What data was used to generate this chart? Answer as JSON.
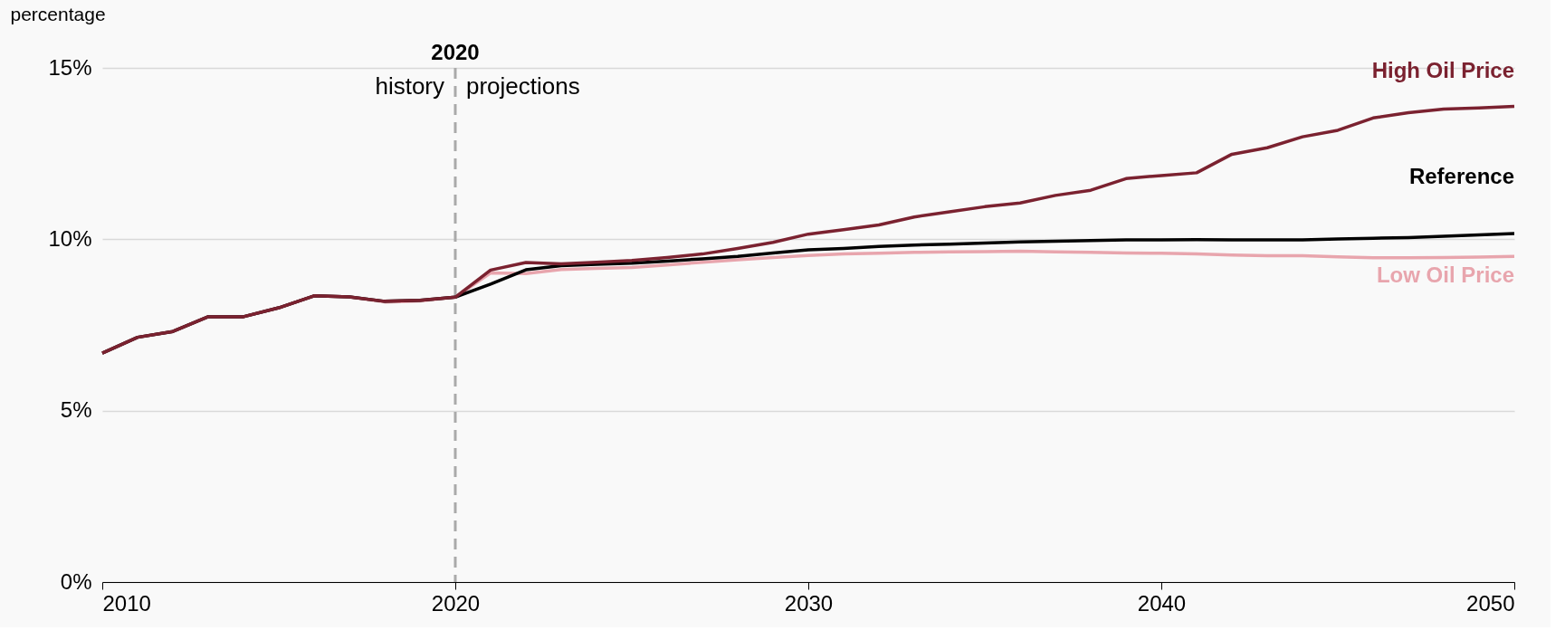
{
  "chart_data": {
    "type": "line",
    "ylabel": "percentage",
    "x": [
      2010,
      2011,
      2012,
      2013,
      2014,
      2015,
      2016,
      2017,
      2018,
      2019,
      2020,
      2021,
      2022,
      2023,
      2024,
      2025,
      2026,
      2027,
      2028,
      2029,
      2030,
      2031,
      2032,
      2033,
      2034,
      2035,
      2036,
      2037,
      2038,
      2039,
      2040,
      2041,
      2042,
      2043,
      2044,
      2045,
      2046,
      2047,
      2048,
      2049,
      2050
    ],
    "series": [
      {
        "name": "High Oil Price",
        "color": "#7b2230",
        "values": [
          6.68,
          7.14,
          7.31,
          7.74,
          7.74,
          8.0,
          8.35,
          8.32,
          8.19,
          8.22,
          8.31,
          9.1,
          9.32,
          9.28,
          9.33,
          9.38,
          9.47,
          9.57,
          9.73,
          9.91,
          10.15,
          10.28,
          10.42,
          10.65,
          10.8,
          10.95,
          11.06,
          11.28,
          11.43,
          11.77,
          11.86,
          11.94,
          12.48,
          12.67,
          12.99,
          13.18,
          13.54,
          13.69,
          13.8,
          13.83,
          13.88
        ]
      },
      {
        "name": "Reference",
        "color": "#000000",
        "values": [
          6.68,
          7.14,
          7.31,
          7.74,
          7.74,
          8.0,
          8.35,
          8.32,
          8.19,
          8.22,
          8.31,
          8.69,
          9.11,
          9.23,
          9.27,
          9.3,
          9.36,
          9.43,
          9.5,
          9.6,
          9.69,
          9.73,
          9.79,
          9.83,
          9.86,
          9.89,
          9.92,
          9.94,
          9.96,
          9.98,
          9.98,
          9.99,
          9.98,
          9.98,
          9.98,
          10.01,
          10.03,
          10.05,
          10.09,
          10.13,
          10.17
        ]
      },
      {
        "name": "Low Oil Price",
        "color": "#e8a5ad",
        "values": [
          6.68,
          7.14,
          7.31,
          7.74,
          7.74,
          8.0,
          8.35,
          8.32,
          8.17,
          8.2,
          8.31,
          9.02,
          9.0,
          9.12,
          9.15,
          9.18,
          9.25,
          9.33,
          9.4,
          9.47,
          9.53,
          9.57,
          9.59,
          9.62,
          9.63,
          9.64,
          9.65,
          9.63,
          9.62,
          9.6,
          9.59,
          9.57,
          9.54,
          9.52,
          9.52,
          9.49,
          9.46,
          9.46,
          9.47,
          9.48,
          9.5
        ]
      }
    ],
    "xlim": [
      2010,
      2050
    ],
    "xticks": [
      2010,
      2020,
      2030,
      2040,
      2050
    ],
    "ylim": [
      0,
      15
    ],
    "yticks": [
      {
        "value": 0,
        "label": "0%"
      },
      {
        "value": 5,
        "label": "5%"
      },
      {
        "value": 10,
        "label": "10%"
      },
      {
        "value": 15,
        "label": "15%"
      }
    ],
    "grid": "y",
    "legend": false,
    "marker": "none",
    "line_style": "solid",
    "ref_lines": [
      {
        "axis": "x",
        "value": 2020,
        "label": "2020",
        "color": "#aaaaaa",
        "line_style": "dashed"
      }
    ],
    "annotations": [
      "history",
      "projections"
    ]
  }
}
